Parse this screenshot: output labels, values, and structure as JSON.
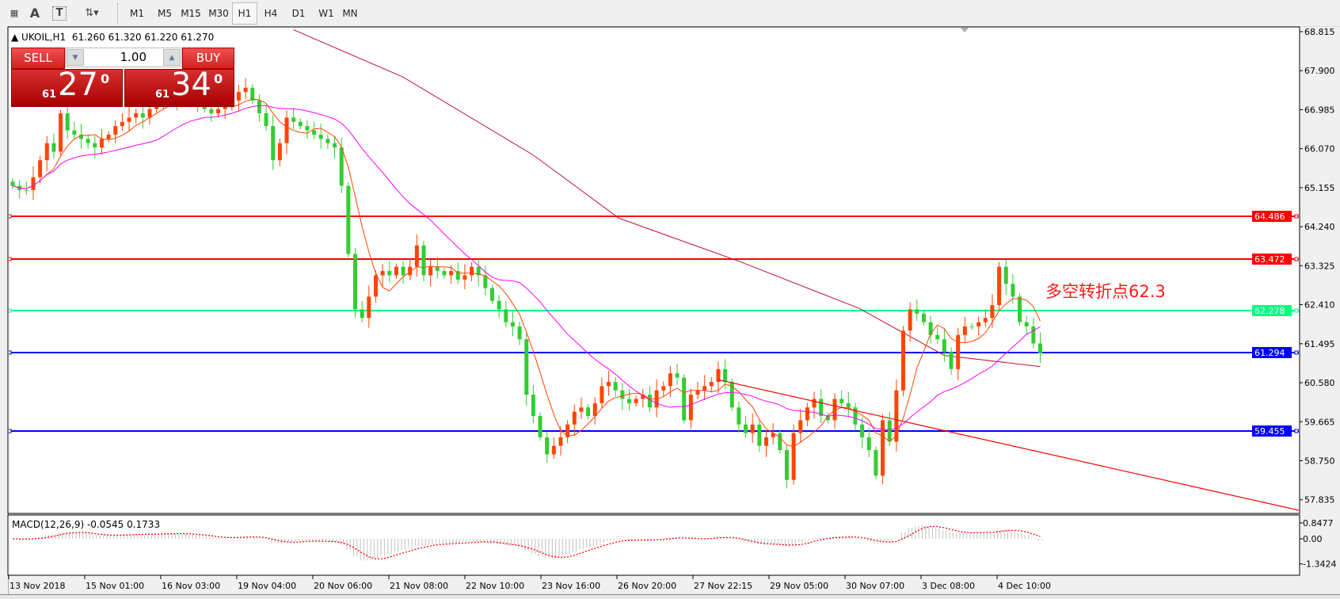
{
  "toolbar": {
    "icons": [
      "grid-font-icon",
      "text-icon",
      "text-label-icon",
      "arrows-dropdown-icon"
    ],
    "timeframes": [
      "M1",
      "M5",
      "M15",
      "M30",
      "H1",
      "H4",
      "D1",
      "W1",
      "MN"
    ],
    "selected_timeframe": "H1"
  },
  "chart": {
    "symbol_line": "UKOIL,H1  61.260 61.320 61.220 61.270",
    "colors": {
      "bull": "#ff4500",
      "bear": "#32cd32",
      "ma_fast": "#ff4500",
      "ma_mid": "#ff00ff",
      "ma_long": "#c0143c",
      "trendline": "#ff0000"
    }
  },
  "trade_panel": {
    "sell_label": "SELL",
    "buy_label": "BUY",
    "lot": "1.00",
    "sell_price": {
      "prefix": "61",
      "big": "27",
      "sup": "0"
    },
    "buy_price": {
      "prefix": "61",
      "big": "34",
      "sup": "0"
    }
  },
  "annotation": "多空转折点62.3",
  "chart_data": {
    "type": "candlestick",
    "price_axis": {
      "ticks": [
        "68.815",
        "67.900",
        "66.985",
        "66.070",
        "65.155",
        "64.240",
        "63.325",
        "62.410",
        "61.495",
        "60.580",
        "59.665",
        "58.750",
        "57.835"
      ],
      "range": [
        57.835,
        68.815
      ]
    },
    "time_axis": {
      "ticks": [
        "13 Nov 2018",
        "15 Nov 01:00",
        "16 Nov 03:00",
        "19 Nov 04:00",
        "20 Nov 06:00",
        "21 Nov 08:00",
        "22 Nov 10:00",
        "23 Nov 16:00",
        "26 Nov 20:00",
        "27 Nov 22:15",
        "29 Nov 05:00",
        "30 Nov 07:00",
        "3 Dec 08:00",
        "4 Dec 10:00"
      ]
    },
    "closes": [
      65.2,
      65.1,
      65.1,
      65.4,
      65.8,
      66.2,
      66.0,
      66.9,
      66.5,
      66.4,
      66.3,
      66.2,
      66.1,
      66.3,
      66.4,
      66.6,
      66.7,
      66.8,
      66.9,
      66.8,
      67.0,
      67.2,
      67.3,
      67.3,
      67.2,
      67.4,
      67.3,
      67.1,
      67.0,
      66.9,
      67.0,
      67.1,
      67.2,
      67.4,
      67.5,
      67.2,
      66.9,
      66.6,
      65.8,
      66.2,
      66.8,
      66.7,
      66.6,
      66.5,
      66.4,
      66.3,
      66.2,
      66.1,
      65.2,
      63.6,
      62.3,
      62.1,
      62.6,
      63.1,
      63.2,
      63.1,
      63.3,
      63.1,
      63.3,
      63.8,
      63.1,
      63.3,
      63.2,
      63.1,
      63.2,
      63.0,
      63.1,
      63.3,
      63.1,
      62.8,
      62.5,
      62.3,
      62.0,
      61.9,
      61.6,
      60.3,
      59.8,
      59.3,
      58.9,
      59.1,
      59.3,
      59.6,
      59.9,
      60.0,
      59.8,
      60.1,
      60.5,
      60.6,
      60.4,
      60.2,
      60.1,
      60.2,
      60.3,
      60.0,
      60.4,
      60.5,
      60.8,
      60.7,
      59.7,
      60.3,
      60.4,
      60.5,
      60.6,
      60.9,
      60.6,
      60.0,
      59.6,
      59.4,
      59.6,
      59.1,
      59.3,
      59.4,
      59.0,
      58.3,
      59.4,
      59.7,
      60.0,
      60.2,
      59.8,
      59.7,
      60.2,
      60.1,
      60.0,
      59.6,
      59.3,
      59.0,
      58.4,
      59.7,
      59.2,
      60.4,
      61.8,
      62.3,
      62.2,
      62.0,
      61.7,
      61.6,
      61.3,
      60.9,
      61.7,
      61.9,
      61.9,
      62.0,
      62.1,
      62.4,
      63.3,
      62.9,
      62.6,
      62.0,
      61.9,
      61.5,
      61.27
    ],
    "ma_long": [
      [
        41,
        68.86
      ],
      [
        57,
        67.75
      ],
      [
        76,
        65.92
      ],
      [
        88.5,
        64.44
      ],
      [
        106,
        63.43
      ],
      [
        123.5,
        62.33
      ],
      [
        136,
        61.22
      ],
      [
        150,
        60.96
      ]
    ],
    "trendline": {
      "from": [
        103,
        60.65
      ],
      "to": [
        188.5,
        57.56
      ]
    },
    "horizontal_lines": [
      {
        "price": "64.486",
        "color": "#ff0000"
      },
      {
        "price": "63.472",
        "color": "#ff0000"
      },
      {
        "price": "62.278",
        "color": "#00ff7f"
      },
      {
        "price": "61.294",
        "color": "#0000ff"
      },
      {
        "price": "59.455",
        "color": "#0000ff"
      }
    ],
    "macd": {
      "label": "MACD(12,26,9) -0.0545 0.1733",
      "ticks": [
        "0.8477",
        "0.00",
        "-1.3424"
      ],
      "range": [
        -1.3424,
        0.8477
      ],
      "histogram_color": "#c0c0c0",
      "signal_color": "#ff0000"
    }
  }
}
